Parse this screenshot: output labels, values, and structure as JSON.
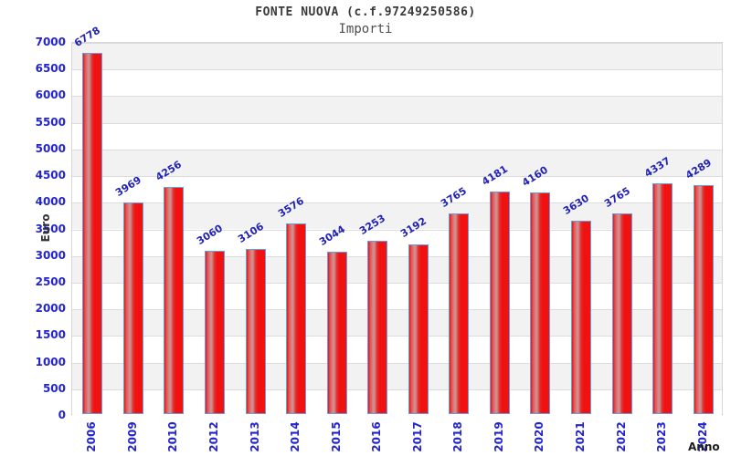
{
  "header": {
    "title": "FONTE NUOVA (c.f.97249250586)",
    "subtitle": "Importi"
  },
  "chart_data": {
    "type": "bar",
    "title": "FONTE NUOVA (c.f.97249250586)",
    "subtitle": "Importi",
    "xlabel": "Anno",
    "ylabel": "Euro",
    "categories": [
      "2006",
      "2009",
      "2010",
      "2012",
      "2013",
      "2014",
      "2015",
      "2016",
      "2017",
      "2018",
      "2019",
      "2020",
      "2021",
      "2022",
      "2023",
      "2024"
    ],
    "values": [
      6778,
      3969,
      4256,
      3060,
      3106,
      3576,
      3044,
      3253,
      3192,
      3765,
      4181,
      4160,
      3630,
      3765,
      4337,
      4289
    ],
    "ylim": [
      0,
      7000
    ],
    "ytick_step": 500,
    "grid": true,
    "legend": false,
    "bands_alternating": true,
    "colors": {
      "bar_fill": "#f01111",
      "bar_highlight": "#cf8f8f",
      "bar_border": "#64a0e0",
      "tick_label_blue": "#2424cc",
      "value_label_blue": "#2222b4",
      "band_gray": "#f2f2f2",
      "band_white": "#ffffff",
      "gridline": "#dcdcdc",
      "title_color": "#3a3a3a",
      "subtitle_color": "#4f4f4f"
    }
  }
}
